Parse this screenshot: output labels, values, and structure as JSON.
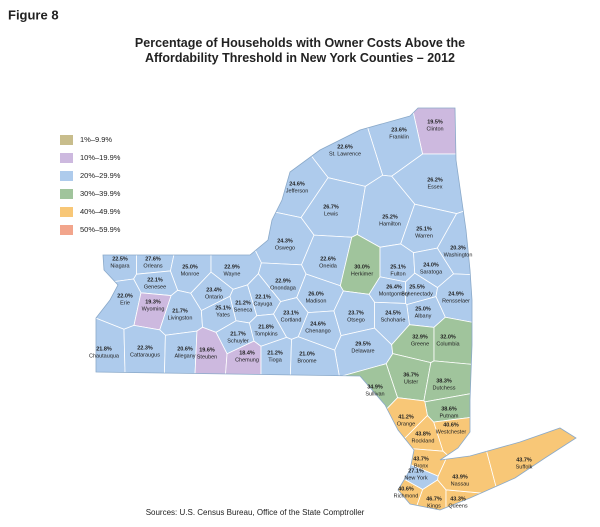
{
  "figure_label": "Figure 8",
  "title": "Percentage of Households with Owner Costs Above the Affordability Threshold in New York Counties – 2012",
  "legend": [
    {
      "label": "1%–9.9%",
      "min": 1,
      "max": 9.9,
      "color": "#c8bd8c"
    },
    {
      "label": "10%–19.9%",
      "min": 10,
      "max": 19.9,
      "color": "#cdb9df"
    },
    {
      "label": "20%–29.9%",
      "min": 20,
      "max": 29.9,
      "color": "#aecbec"
    },
    {
      "label": "30%–39.9%",
      "min": 30,
      "max": 39.9,
      "color": "#a0c49c"
    },
    {
      "label": "40%–49.9%",
      "min": 40,
      "max": 49.9,
      "color": "#f8c777"
    },
    {
      "label": "50%–59.9%",
      "min": 50,
      "max": 59.9,
      "color": "#f2a58c"
    }
  ],
  "counties": [
    {
      "name": "Clinton",
      "value": 19.5,
      "label": "19.5%"
    },
    {
      "name": "Franklin",
      "value": 23.6,
      "label": "23.6%"
    },
    {
      "name": "St. Lawrence",
      "value": 22.6,
      "label": "22.6%"
    },
    {
      "name": "Essex",
      "value": 26.2,
      "label": "26.2%"
    },
    {
      "name": "Jefferson",
      "value": 24.6,
      "label": "24.6%"
    },
    {
      "name": "Lewis",
      "value": 26.7,
      "label": "26.7%"
    },
    {
      "name": "Hamilton",
      "value": 25.2,
      "label": "25.2%"
    },
    {
      "name": "Warren",
      "value": 25.1,
      "label": "25.1%"
    },
    {
      "name": "Washington",
      "value": 20.3,
      "label": "20.3%"
    },
    {
      "name": "Oswego",
      "value": 24.3,
      "label": "24.3%"
    },
    {
      "name": "Oneida",
      "value": 22.6,
      "label": "22.6%"
    },
    {
      "name": "Herkimer",
      "value": 30.0,
      "label": "30.0%"
    },
    {
      "name": "Fulton",
      "value": 25.1,
      "label": "25.1%"
    },
    {
      "name": "Saratoga",
      "value": 24.0,
      "label": "24.0%"
    },
    {
      "name": "Montgomery",
      "value": 26.4,
      "label": "26.4%"
    },
    {
      "name": "Schenectady",
      "value": 25.5,
      "label": "25.5%"
    },
    {
      "name": "Rensselaer",
      "value": 24.9,
      "label": "24.9%"
    },
    {
      "name": "Albany",
      "value": 25.0,
      "label": "25.0%"
    },
    {
      "name": "Schoharie",
      "value": 24.5,
      "label": "24.5%"
    },
    {
      "name": "Niagara",
      "value": 22.5,
      "label": "22.5%"
    },
    {
      "name": "Orleans",
      "value": 27.6,
      "label": "27.6%"
    },
    {
      "name": "Monroe",
      "value": 25.0,
      "label": "25.0%"
    },
    {
      "name": "Wayne",
      "value": 22.9,
      "label": "22.9%"
    },
    {
      "name": "Genesee",
      "value": 22.1,
      "label": "22.1%"
    },
    {
      "name": "Ontario",
      "value": 23.4,
      "label": "23.4%"
    },
    {
      "name": "Onondaga",
      "value": 22.9,
      "label": "22.9%"
    },
    {
      "name": "Madison",
      "value": 26.0,
      "label": "26.0%"
    },
    {
      "name": "Erie",
      "value": 22.0,
      "label": "22.0%"
    },
    {
      "name": "Wyoming",
      "value": 19.3,
      "label": "19.3%"
    },
    {
      "name": "Livingston",
      "value": 21.7,
      "label": "21.7%"
    },
    {
      "name": "Yates",
      "value": 25.1,
      "label": "25.1%"
    },
    {
      "name": "Seneca",
      "value": 21.2,
      "label": "21.2%"
    },
    {
      "name": "Cayuga",
      "value": 22.1,
      "label": "22.1%"
    },
    {
      "name": "Cortland",
      "value": 23.1,
      "label": "23.1%"
    },
    {
      "name": "Chenango",
      "value": 24.6,
      "label": "24.6%"
    },
    {
      "name": "Otsego",
      "value": 23.7,
      "label": "23.7%"
    },
    {
      "name": "Tompkins",
      "value": 21.8,
      "label": "21.8%"
    },
    {
      "name": "Schuyler",
      "value": 21.7,
      "label": "21.7%"
    },
    {
      "name": "Delaware",
      "value": 29.5,
      "label": "29.5%"
    },
    {
      "name": "Greene",
      "value": 32.9,
      "label": "32.9%"
    },
    {
      "name": "Columbia",
      "value": 32.0,
      "label": "32.0%"
    },
    {
      "name": "Chautauqua",
      "value": 21.8,
      "label": "21.8%"
    },
    {
      "name": "Cattaraugus",
      "value": 22.3,
      "label": "22.3%"
    },
    {
      "name": "Allegany",
      "value": 20.6,
      "label": "20.6%"
    },
    {
      "name": "Steuben",
      "value": 19.6,
      "label": "19.6%"
    },
    {
      "name": "Chemung",
      "value": 18.4,
      "label": "18.4%"
    },
    {
      "name": "Tioga",
      "value": 21.2,
      "label": "21.2%"
    },
    {
      "name": "Broome",
      "value": 21.0,
      "label": "21.0%"
    },
    {
      "name": "Ulster",
      "value": 36.7,
      "label": "36.7%"
    },
    {
      "name": "Dutchess",
      "value": 38.3,
      "label": "38.3%"
    },
    {
      "name": "Sullivan",
      "value": 34.9,
      "label": "34.9%"
    },
    {
      "name": "Putnam",
      "value": 38.6,
      "label": "38.6%"
    },
    {
      "name": "Orange",
      "value": 41.2,
      "label": "41.2%"
    },
    {
      "name": "Westchester",
      "value": 40.6,
      "label": "40.6%"
    },
    {
      "name": "Rockland",
      "value": 43.8,
      "label": "43.8%"
    },
    {
      "name": "Bronx",
      "value": 43.7,
      "label": "43.7%"
    },
    {
      "name": "New York",
      "value": 27.1,
      "label": "27.1%"
    },
    {
      "name": "Richmond",
      "value": 40.6,
      "label": "40.6%"
    },
    {
      "name": "Kings",
      "value": 46.7,
      "label": "46.7%"
    },
    {
      "name": "Queens",
      "value": 43.3,
      "label": "43.3%"
    },
    {
      "name": "Nassau",
      "value": 43.9,
      "label": "43.9%"
    },
    {
      "name": "Suffolk",
      "value": 43.7,
      "label": "43.7%"
    }
  ],
  "source": "Sources: U.S. Census Bureau, Office of the State Comptroller"
}
